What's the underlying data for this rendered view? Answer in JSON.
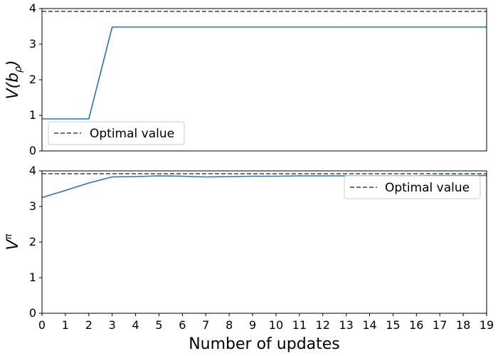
{
  "chart_data": [
    {
      "type": "line",
      "ylabel": "V(bρ)",
      "ylabel_base": "V(b",
      "ylabel_sub": "ρ",
      "ylabel_tail": ")",
      "ylim": [
        0,
        4
      ],
      "yticks": [
        0,
        1,
        2,
        3,
        4
      ],
      "xlim": [
        0,
        19
      ],
      "xticks_shown": false,
      "grid": false,
      "legend_position": "lower-left",
      "series": [
        {
          "color": "#1f77b4",
          "x": [
            0,
            1,
            2,
            3,
            4,
            5,
            6,
            7,
            8,
            9,
            10,
            11,
            12,
            13,
            14,
            15,
            16,
            17,
            18,
            19
          ],
          "values": [
            0.9,
            0.9,
            0.9,
            3.48,
            3.48,
            3.48,
            3.48,
            3.48,
            3.48,
            3.48,
            3.48,
            3.48,
            3.48,
            3.48,
            3.48,
            3.48,
            3.48,
            3.48,
            3.48,
            3.48
          ]
        },
        {
          "name": "Optimal value",
          "style": "dashed",
          "color": "#404040",
          "value": 3.92
        }
      ]
    },
    {
      "type": "line",
      "ylabel": "Vπ",
      "ylabel_base": "V",
      "ylabel_sup": "π",
      "xlabel": "Number of updates",
      "ylim": [
        0,
        4
      ],
      "yticks": [
        0,
        1,
        2,
        3,
        4
      ],
      "xlim": [
        0,
        19
      ],
      "xticks": [
        0,
        1,
        2,
        3,
        4,
        5,
        6,
        7,
        8,
        9,
        10,
        11,
        12,
        13,
        14,
        15,
        16,
        17,
        18,
        19
      ],
      "grid": false,
      "legend_position": "upper-right",
      "series": [
        {
          "color": "#1f77b4",
          "x": [
            0,
            1,
            2,
            3,
            4,
            5,
            6,
            7,
            8,
            9,
            10,
            11,
            12,
            13,
            14,
            15,
            16,
            17,
            18,
            19
          ],
          "values": [
            3.25,
            3.45,
            3.66,
            3.83,
            3.84,
            3.86,
            3.85,
            3.83,
            3.84,
            3.85,
            3.85,
            3.86,
            3.86,
            3.86,
            3.86,
            3.86,
            3.86,
            3.87,
            3.87,
            3.87
          ]
        },
        {
          "name": "Optimal value",
          "style": "dashed",
          "color": "#404040",
          "value": 3.92
        }
      ]
    }
  ]
}
